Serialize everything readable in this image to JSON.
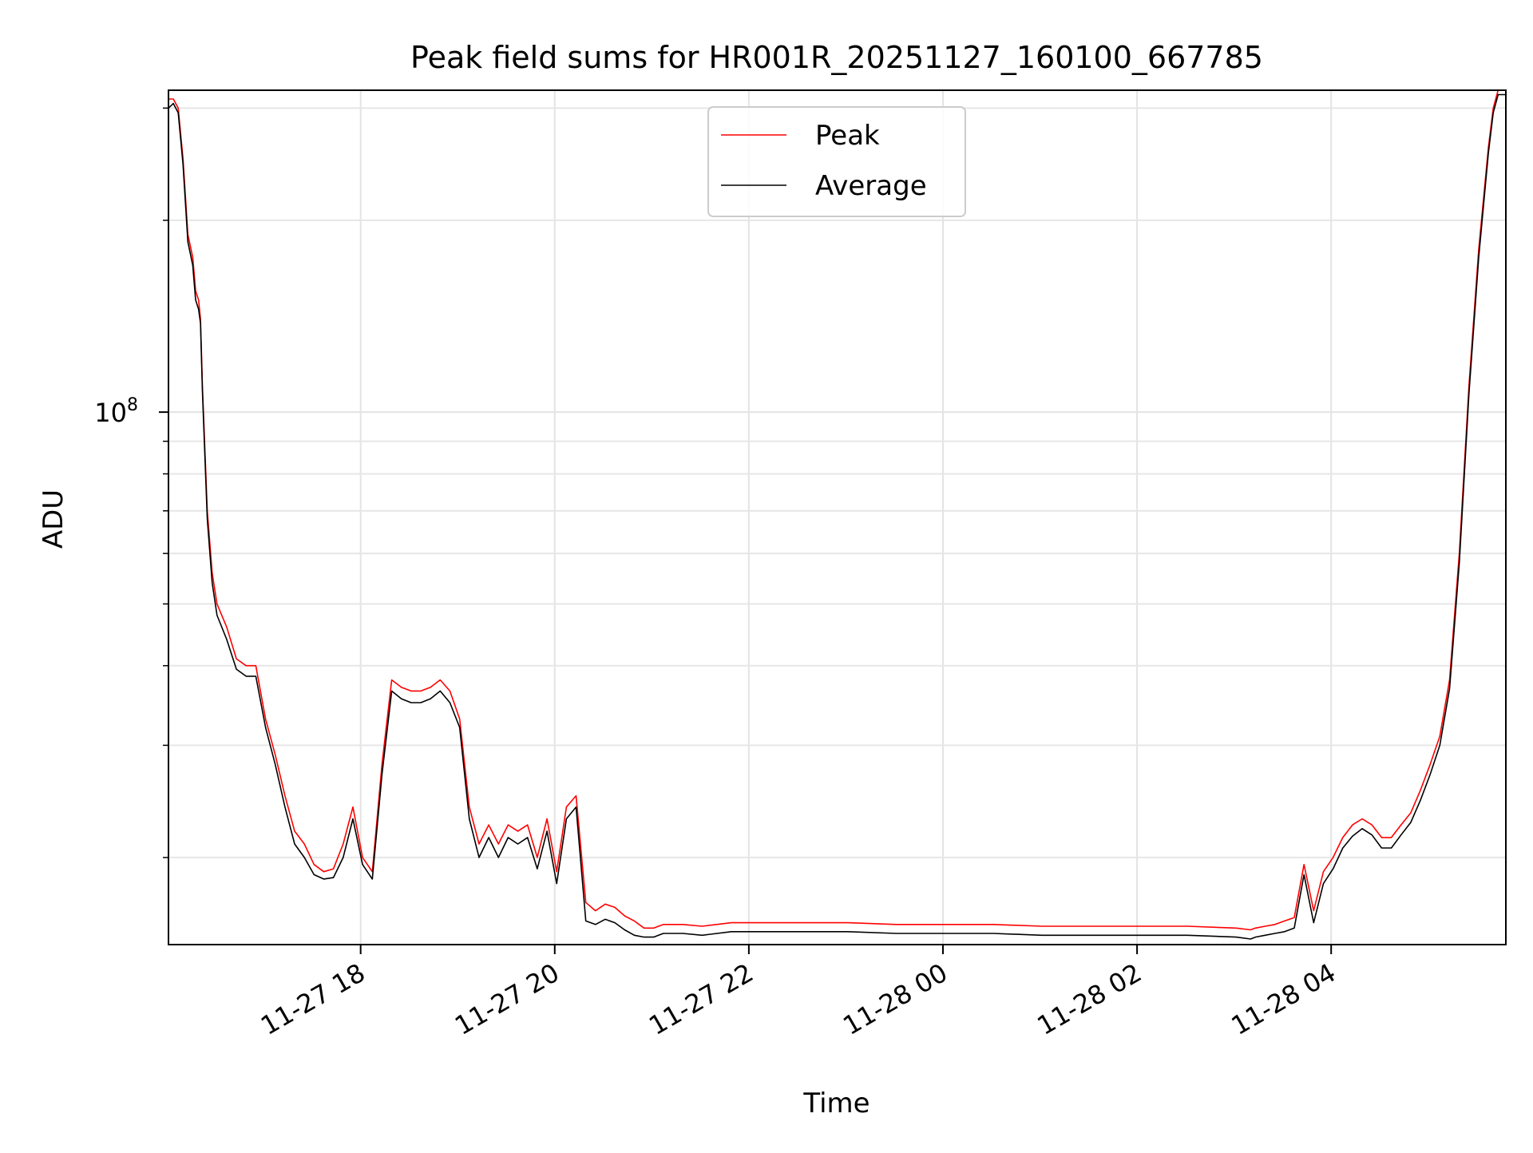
{
  "chart_data": {
    "type": "line",
    "title": "Peak field sums for HR001R_20251127_160100_667785",
    "xlabel": "Time",
    "ylabel": "ADU",
    "yscale": "log",
    "x_unit": "hours since 2025-11-27 16:01",
    "xlim": [
      0.0,
      13.78
    ],
    "ylim": [
      14600000,
      320000000
    ],
    "grid": true,
    "legend_position": "top-center",
    "x_ticks": [
      {
        "value": 1.98,
        "label": "11-27 18"
      },
      {
        "value": 3.98,
        "label": "11-27 20"
      },
      {
        "value": 5.98,
        "label": "11-27 22"
      },
      {
        "value": 7.98,
        "label": "11-28 00"
      },
      {
        "value": 9.98,
        "label": "11-28 02"
      },
      {
        "value": 11.98,
        "label": "11-28 04"
      }
    ],
    "y_major_ticks": [
      {
        "value": 100000000,
        "base": "10",
        "exp": "8"
      }
    ],
    "y_minor_ticks": [
      20000000,
      30000000,
      40000000,
      50000000,
      60000000,
      70000000,
      80000000,
      90000000,
      200000000,
      300000000
    ],
    "series": [
      {
        "name": "Peak",
        "color": "#ff0000",
        "x": [
          0.0,
          0.05,
          0.1,
          0.15,
          0.2,
          0.25,
          0.28,
          0.31,
          0.33,
          0.35,
          0.4,
          0.45,
          0.5,
          0.6,
          0.7,
          0.8,
          0.9,
          1.0,
          1.1,
          1.2,
          1.3,
          1.4,
          1.5,
          1.6,
          1.7,
          1.8,
          1.9,
          2.0,
          2.1,
          2.2,
          2.3,
          2.4,
          2.5,
          2.6,
          2.7,
          2.8,
          2.9,
          3.0,
          3.1,
          3.2,
          3.3,
          3.4,
          3.5,
          3.6,
          3.7,
          3.8,
          3.9,
          4.0,
          4.1,
          4.2,
          4.3,
          4.4,
          4.5,
          4.6,
          4.7,
          4.8,
          4.9,
          5.0,
          5.05,
          5.1,
          5.3,
          5.5,
          5.8,
          6.0,
          6.5,
          7.0,
          7.5,
          8.0,
          8.5,
          9.0,
          9.5,
          10.0,
          10.5,
          11.0,
          11.15,
          11.2,
          11.3,
          11.4,
          11.5,
          11.6,
          11.7,
          11.8,
          11.9,
          12.0,
          12.1,
          12.2,
          12.3,
          12.4,
          12.5,
          12.6,
          12.7,
          12.8,
          12.9,
          13.0,
          13.1,
          13.2,
          13.3,
          13.4,
          13.5,
          13.6,
          13.65,
          13.7,
          13.78
        ],
        "values": [
          310000000,
          310000000,
          300000000,
          250000000,
          190000000,
          175000000,
          155000000,
          150000000,
          140000000,
          110000000,
          70000000,
          56000000,
          50000000,
          46000000,
          41000000,
          40000000,
          40000000,
          33000000,
          29000000,
          25000000,
          22000000,
          21000000,
          19500000,
          19000000,
          19200000,
          21000000,
          24000000,
          20000000,
          19000000,
          28000000,
          38000000,
          37000000,
          36500000,
          36500000,
          37000000,
          38000000,
          36500000,
          33000000,
          24000000,
          21000000,
          22500000,
          21000000,
          22500000,
          22000000,
          22500000,
          20000000,
          23000000,
          19000000,
          24000000,
          25000000,
          17000000,
          16500000,
          16900000,
          16700000,
          16200000,
          15900000,
          15500000,
          15500000,
          15600000,
          15700000,
          15700000,
          15600000,
          15800000,
          15800000,
          15800000,
          15800000,
          15700000,
          15700000,
          15700000,
          15600000,
          15600000,
          15600000,
          15600000,
          15500000,
          15400000,
          15500000,
          15600000,
          15700000,
          15900000,
          16100000,
          19500000,
          16500000,
          19000000,
          20000000,
          21500000,
          22500000,
          23000000,
          22500000,
          21500000,
          21500000,
          22500000,
          23500000,
          25500000,
          28000000,
          31000000,
          38000000,
          60000000,
          110000000,
          180000000,
          260000000,
          300000000,
          320000000,
          320000000
        ]
      },
      {
        "name": "Average",
        "color": "#000000",
        "x": [
          0.0,
          0.05,
          0.1,
          0.15,
          0.2,
          0.25,
          0.28,
          0.31,
          0.33,
          0.35,
          0.4,
          0.45,
          0.5,
          0.6,
          0.7,
          0.8,
          0.9,
          1.0,
          1.1,
          1.2,
          1.3,
          1.4,
          1.5,
          1.6,
          1.7,
          1.8,
          1.9,
          2.0,
          2.1,
          2.2,
          2.3,
          2.4,
          2.5,
          2.6,
          2.7,
          2.8,
          2.9,
          3.0,
          3.1,
          3.2,
          3.3,
          3.4,
          3.5,
          3.6,
          3.7,
          3.8,
          3.9,
          4.0,
          4.1,
          4.2,
          4.3,
          4.4,
          4.5,
          4.6,
          4.7,
          4.8,
          4.9,
          5.0,
          5.05,
          5.1,
          5.3,
          5.5,
          5.8,
          6.0,
          6.5,
          7.0,
          7.5,
          8.0,
          8.5,
          9.0,
          9.5,
          10.0,
          10.5,
          11.0,
          11.15,
          11.2,
          11.3,
          11.4,
          11.5,
          11.6,
          11.7,
          11.8,
          11.9,
          12.0,
          12.1,
          12.2,
          12.3,
          12.4,
          12.5,
          12.6,
          12.7,
          12.8,
          12.9,
          13.0,
          13.1,
          13.2,
          13.3,
          13.4,
          13.5,
          13.6,
          13.65,
          13.7,
          13.78
        ],
        "values": [
          300000000,
          305000000,
          295000000,
          245000000,
          185000000,
          170000000,
          150000000,
          145000000,
          138000000,
          108000000,
          68000000,
          54000000,
          48000000,
          44000000,
          39500000,
          38500000,
          38500000,
          32000000,
          28000000,
          24000000,
          21000000,
          20000000,
          18800000,
          18500000,
          18600000,
          20000000,
          23000000,
          19500000,
          18500000,
          27000000,
          36500000,
          35500000,
          35000000,
          35000000,
          35500000,
          36500000,
          35000000,
          32000000,
          23000000,
          20000000,
          21500000,
          20000000,
          21500000,
          21000000,
          21500000,
          19200000,
          22000000,
          18200000,
          23000000,
          24000000,
          15900000,
          15700000,
          16000000,
          15800000,
          15400000,
          15100000,
          15000000,
          15000000,
          15100000,
          15200000,
          15200000,
          15100000,
          15300000,
          15300000,
          15300000,
          15300000,
          15200000,
          15200000,
          15200000,
          15100000,
          15100000,
          15100000,
          15100000,
          15000000,
          14900000,
          15000000,
          15100000,
          15200000,
          15300000,
          15500000,
          18800000,
          15800000,
          18200000,
          19200000,
          20700000,
          21600000,
          22200000,
          21700000,
          20700000,
          20700000,
          21700000,
          22700000,
          24600000,
          27000000,
          30000000,
          36800000,
          58000000,
          107000000,
          175000000,
          255000000,
          295000000,
          315000000,
          315000000
        ]
      }
    ]
  }
}
